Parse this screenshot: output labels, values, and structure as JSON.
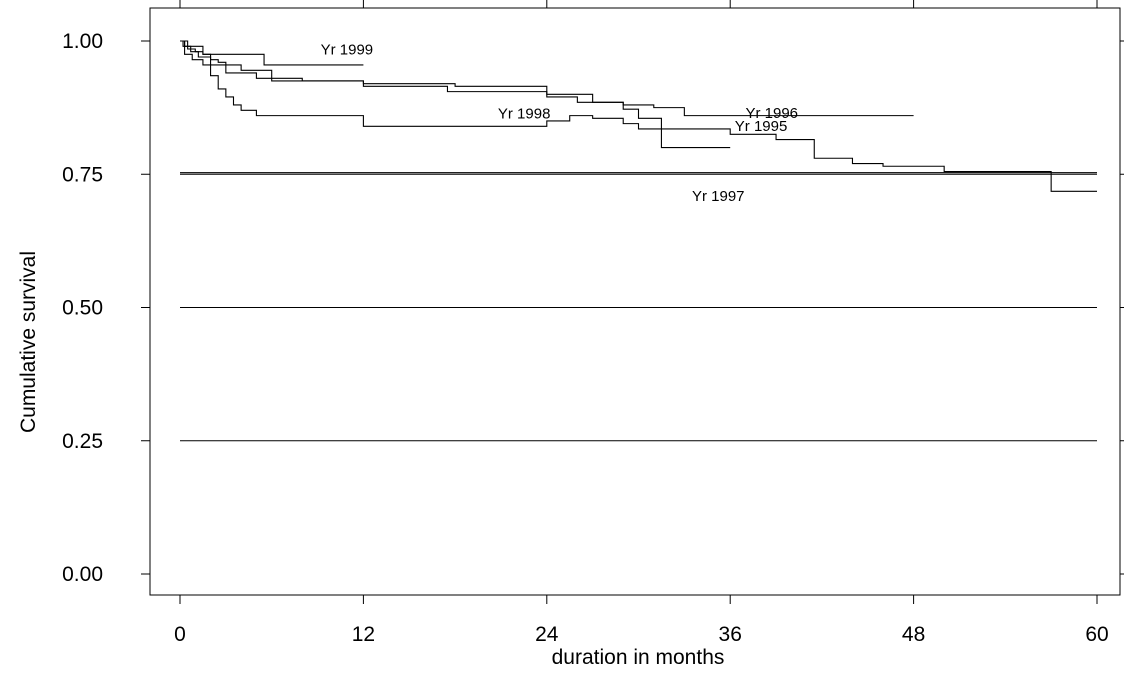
{
  "chart_data": {
    "type": "line",
    "xlabel": "duration in months",
    "ylabel": "Cumulative survival",
    "xlim": [
      0,
      60
    ],
    "ylim": [
      0,
      1
    ],
    "x_ticks": [
      {
        "value": 0,
        "label": "0"
      },
      {
        "value": 12,
        "label": "12"
      },
      {
        "value": 24,
        "label": "24"
      },
      {
        "value": 36,
        "label": "36"
      },
      {
        "value": 48,
        "label": "48"
      },
      {
        "value": 60,
        "label": "60"
      }
    ],
    "y_ticks": [
      {
        "value": 0.0,
        "label": "0.00"
      },
      {
        "value": 0.25,
        "label": "0.25"
      },
      {
        "value": 0.5,
        "label": "0.50"
      },
      {
        "value": 0.75,
        "label": "0.75"
      },
      {
        "value": 1.0,
        "label": "1.00"
      }
    ],
    "reference_lines": [
      0.25,
      0.5,
      0.75
    ],
    "grid": false,
    "series": [
      {
        "name": "Yr 1995",
        "label_at": [
          36.3,
          0.831
        ],
        "x": [
          0,
          0.2,
          0.5,
          1.0,
          1.5,
          2.0,
          2.5,
          3.0,
          4.0,
          6.0,
          12.0,
          17.5,
          24.0,
          27.0,
          29.0,
          30.0,
          31.5,
          36.0,
          39.0,
          41.5,
          44.0,
          46.0,
          50.0,
          57.0,
          60.0
        ],
        "y": [
          1.0,
          0.99,
          0.985,
          0.98,
          0.975,
          0.965,
          0.96,
          0.955,
          0.945,
          0.925,
          0.915,
          0.905,
          0.9,
          0.885,
          0.872,
          0.855,
          0.835,
          0.825,
          0.815,
          0.78,
          0.77,
          0.765,
          0.755,
          0.718,
          0.718
        ]
      },
      {
        "name": "Yr 1996",
        "label_at": [
          37.0,
          0.856
        ],
        "x": [
          0,
          0.3,
          0.7,
          1.2,
          2.0,
          3.0,
          5.0,
          8.0,
          12.0,
          18.0,
          24.0,
          26.0,
          29.0,
          31.0,
          33.0,
          48.0
        ],
        "y": [
          1.0,
          0.99,
          0.98,
          0.97,
          0.955,
          0.94,
          0.93,
          0.925,
          0.92,
          0.915,
          0.895,
          0.885,
          0.88,
          0.875,
          0.86,
          0.86
        ]
      },
      {
        "name": "Yr 1997",
        "label_at": [
          33.5,
          0.7
        ],
        "x": [
          0,
          60
        ],
        "y": [
          0.753,
          0.753
        ]
      },
      {
        "name": "Yr 1998",
        "label_at": [
          20.8,
          0.855
        ],
        "x": [
          0,
          0.3,
          0.8,
          1.5,
          2.0,
          2.5,
          3.0,
          3.5,
          4.0,
          5.0,
          12.0,
          23.0,
          24.0,
          25.5,
          27.0,
          29.0,
          30.0,
          31.5,
          36.0
        ],
        "y": [
          1.0,
          0.975,
          0.965,
          0.955,
          0.935,
          0.91,
          0.895,
          0.88,
          0.87,
          0.86,
          0.84,
          0.84,
          0.85,
          0.86,
          0.855,
          0.845,
          0.835,
          0.8,
          0.8
        ]
      },
      {
        "name": "Yr 1999",
        "label_at": [
          9.2,
          0.975
        ],
        "x": [
          0,
          0.5,
          1.5,
          5.5,
          12.0
        ],
        "y": [
          1.0,
          0.99,
          0.975,
          0.955,
          0.955
        ]
      }
    ]
  }
}
